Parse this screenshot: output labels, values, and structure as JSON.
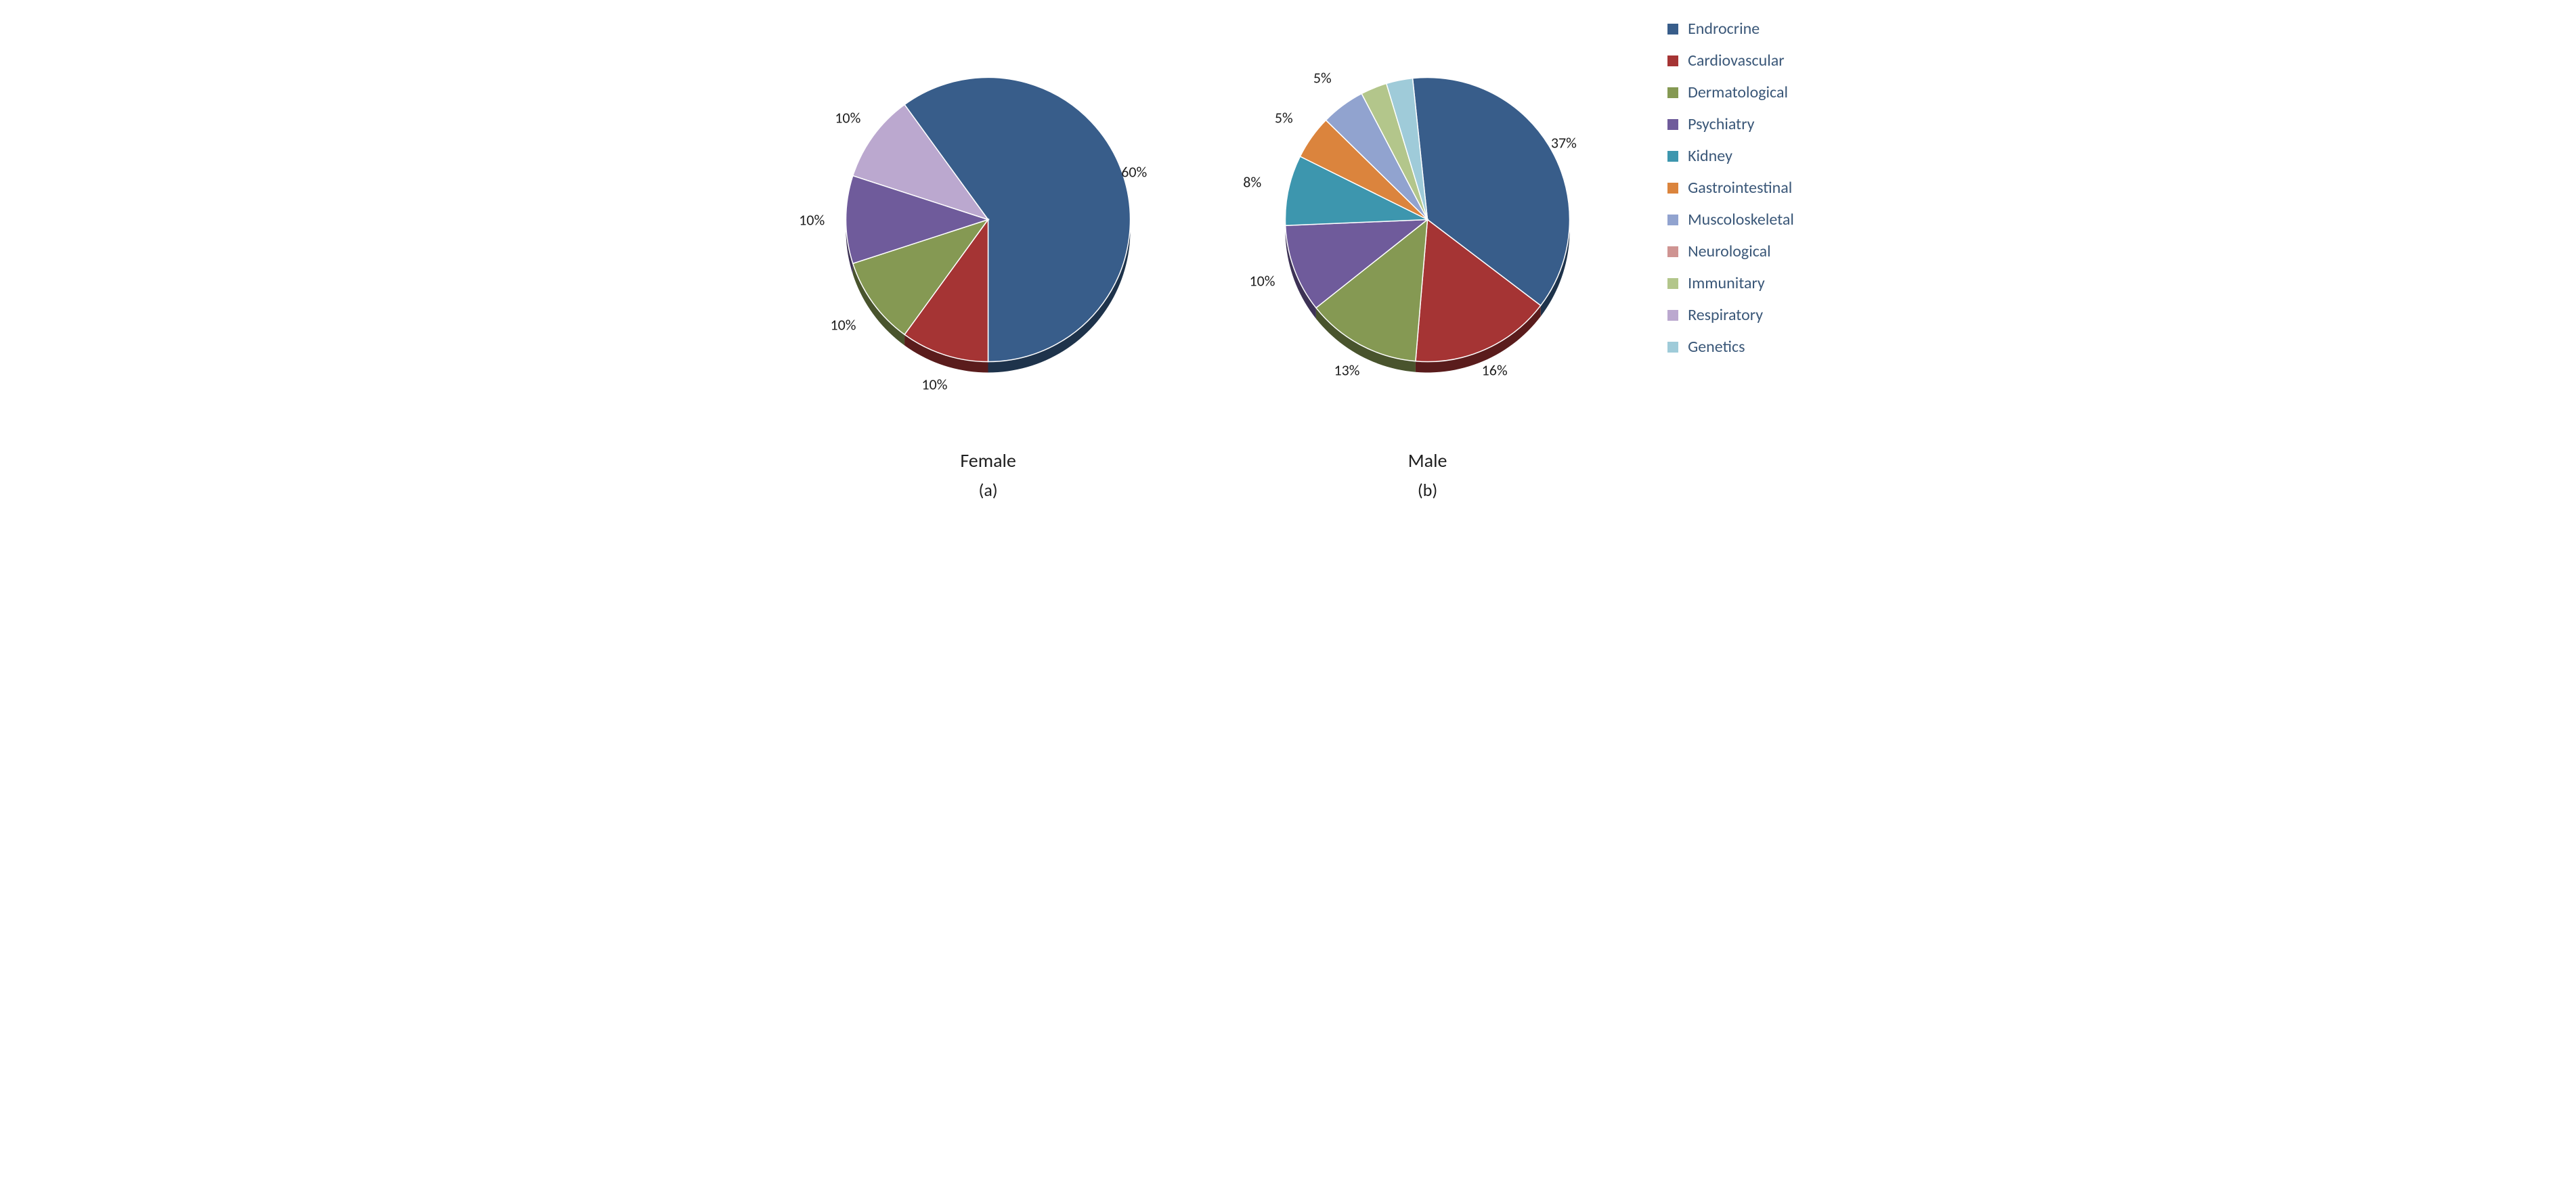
{
  "background_color": "#ffffff",
  "label_fontsize": 22,
  "title_fontsize": 28,
  "legend_fontsize": 24,
  "legend_text_color": "#3a5778",
  "categories": [
    {
      "name": "Endrocrine",
      "color": "#385d8a"
    },
    {
      "name": "Cardiovascular",
      "color": "#a53434"
    },
    {
      "name": "Dermatological",
      "color": "#859953"
    },
    {
      "name": "Psychiatry",
      "color": "#6f5b9b"
    },
    {
      "name": "Kidney",
      "color": "#3d96ae"
    },
    {
      "name": "Gastrointestinal",
      "color": "#db843d"
    },
    {
      "name": "Muscoloskeletal",
      "color": "#91a3cf"
    },
    {
      "name": "Neurological",
      "color": "#cf9492"
    },
    {
      "name": "Immunitary",
      "color": "#b3c68b"
    },
    {
      "name": "Respiratory",
      "color": "#bba8cf"
    },
    {
      "name": "Genetics",
      "color": "#9fcbd9"
    }
  ],
  "charts": [
    {
      "id": "female",
      "type": "pie",
      "title": "Female",
      "subtitle": "(a)",
      "radius": 210,
      "depth": 16,
      "start_angle_deg": -126,
      "slices": [
        {
          "category": "Endrocrine",
          "value": 60,
          "label": "60%",
          "label_offset": 1.08
        },
        {
          "category": "Cardiovascular",
          "value": 10,
          "label": "10%",
          "label_offset": 1.22
        },
        {
          "category": "Dermatological",
          "value": 10,
          "label": "10%",
          "label_offset": 1.26
        },
        {
          "category": "Psychiatry",
          "value": 10,
          "label": "10%",
          "label_offset": 1.24
        },
        {
          "category": "Respiratory",
          "value": 10,
          "label": "10%",
          "label_offset": 1.22
        }
      ]
    },
    {
      "id": "male",
      "type": "pie",
      "title": "Male",
      "subtitle": "(b)",
      "radius": 210,
      "depth": 16,
      "start_angle_deg": -96,
      "slices": [
        {
          "category": "Endrocrine",
          "value": 37,
          "label": "37%",
          "label_offset": 1.1
        },
        {
          "category": "Cardiovascular",
          "value": 16,
          "label": "16%",
          "label_offset": 1.16
        },
        {
          "category": "Dermatological",
          "value": 13,
          "label": "13%",
          "label_offset": 1.2
        },
        {
          "category": "Psychiatry",
          "value": 10,
          "label": "10%",
          "label_offset": 1.24
        },
        {
          "category": "Kidney",
          "value": 8,
          "label": "8%",
          "label_offset": 1.26
        },
        {
          "category": "Gastrointestinal",
          "value": 5,
          "label": "5%",
          "label_offset": 1.24
        },
        {
          "category": "Muscoloskeletal",
          "value": 5,
          "label": "5%",
          "label_offset": 1.24
        },
        {
          "category": "Immunitary",
          "value": 3,
          "label": "",
          "label_offset": 1.0
        },
        {
          "category": "Genetics",
          "value": 3,
          "label": "",
          "label_offset": 1.0
        }
      ]
    }
  ]
}
